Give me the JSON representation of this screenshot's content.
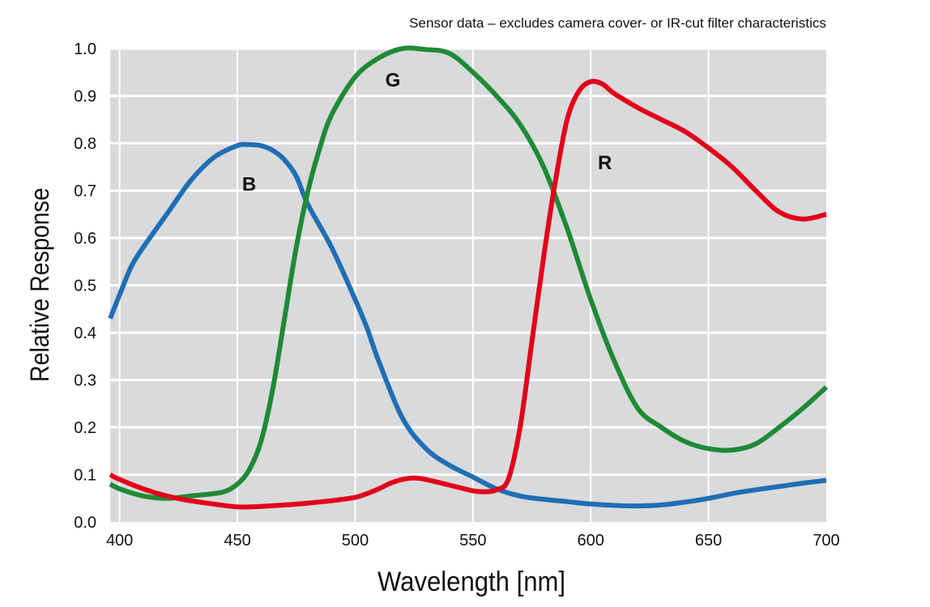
{
  "chart_data": {
    "type": "line",
    "subtitle": "Sensor data – excludes camera cover- or IR-cut filter characteristics",
    "xlabel": "Wavelength [nm]",
    "ylabel": "Relative Response",
    "xlim": [
      396,
      700
    ],
    "ylim": [
      0,
      1.0
    ],
    "xticks": [
      "400",
      "450",
      "500",
      "550",
      "600",
      "650",
      "700"
    ],
    "yticks": [
      "0.0",
      "0.1",
      "0.2",
      "0.3",
      "0.4",
      "0.5",
      "0.6",
      "0.7",
      "0.8",
      "0.9",
      "1.0"
    ],
    "grid": true,
    "background": "#d9dadb",
    "series": [
      {
        "name": "B",
        "color": "#1f6fb5",
        "points": [
          [
            396,
            0.43
          ],
          [
            400,
            0.48
          ],
          [
            405,
            0.54
          ],
          [
            410,
            0.58
          ],
          [
            420,
            0.65
          ],
          [
            430,
            0.72
          ],
          [
            440,
            0.77
          ],
          [
            450,
            0.795
          ],
          [
            455,
            0.797
          ],
          [
            460,
            0.795
          ],
          [
            465,
            0.785
          ],
          [
            470,
            0.765
          ],
          [
            475,
            0.73
          ],
          [
            480,
            0.67
          ],
          [
            490,
            0.58
          ],
          [
            500,
            0.47
          ],
          [
            505,
            0.41
          ],
          [
            510,
            0.34
          ],
          [
            520,
            0.22
          ],
          [
            530,
            0.155
          ],
          [
            540,
            0.12
          ],
          [
            550,
            0.095
          ],
          [
            560,
            0.07
          ],
          [
            570,
            0.055
          ],
          [
            580,
            0.048
          ],
          [
            590,
            0.043
          ],
          [
            600,
            0.038
          ],
          [
            610,
            0.035
          ],
          [
            620,
            0.034
          ],
          [
            630,
            0.036
          ],
          [
            640,
            0.042
          ],
          [
            650,
            0.05
          ],
          [
            660,
            0.06
          ],
          [
            670,
            0.068
          ],
          [
            680,
            0.075
          ],
          [
            690,
            0.082
          ],
          [
            700,
            0.088
          ]
        ]
      },
      {
        "name": "G",
        "color": "#1f8a36",
        "points": [
          [
            396,
            0.08
          ],
          [
            400,
            0.07
          ],
          [
            410,
            0.055
          ],
          [
            420,
            0.05
          ],
          [
            430,
            0.055
          ],
          [
            440,
            0.06
          ],
          [
            445,
            0.065
          ],
          [
            450,
            0.08
          ],
          [
            455,
            0.11
          ],
          [
            460,
            0.17
          ],
          [
            465,
            0.28
          ],
          [
            470,
            0.43
          ],
          [
            475,
            0.58
          ],
          [
            480,
            0.7
          ],
          [
            485,
            0.79
          ],
          [
            490,
            0.86
          ],
          [
            500,
            0.94
          ],
          [
            510,
            0.98
          ],
          [
            520,
            1.0
          ],
          [
            530,
            0.998
          ],
          [
            540,
            0.99
          ],
          [
            550,
            0.95
          ],
          [
            560,
            0.9
          ],
          [
            570,
            0.84
          ],
          [
            580,
            0.75
          ],
          [
            590,
            0.62
          ],
          [
            600,
            0.47
          ],
          [
            610,
            0.34
          ],
          [
            620,
            0.24
          ],
          [
            630,
            0.2
          ],
          [
            640,
            0.17
          ],
          [
            650,
            0.155
          ],
          [
            660,
            0.152
          ],
          [
            670,
            0.165
          ],
          [
            680,
            0.2
          ],
          [
            690,
            0.24
          ],
          [
            700,
            0.285
          ]
        ]
      },
      {
        "name": "R",
        "color": "#e2001a",
        "points": [
          [
            396,
            0.1
          ],
          [
            400,
            0.09
          ],
          [
            410,
            0.07
          ],
          [
            420,
            0.055
          ],
          [
            430,
            0.045
          ],
          [
            440,
            0.038
          ],
          [
            450,
            0.032
          ],
          [
            460,
            0.033
          ],
          [
            470,
            0.036
          ],
          [
            480,
            0.04
          ],
          [
            490,
            0.045
          ],
          [
            500,
            0.052
          ],
          [
            505,
            0.06
          ],
          [
            510,
            0.07
          ],
          [
            515,
            0.082
          ],
          [
            520,
            0.09
          ],
          [
            525,
            0.093
          ],
          [
            530,
            0.09
          ],
          [
            540,
            0.078
          ],
          [
            550,
            0.066
          ],
          [
            555,
            0.064
          ],
          [
            560,
            0.068
          ],
          [
            565,
            0.09
          ],
          [
            570,
            0.2
          ],
          [
            575,
            0.38
          ],
          [
            580,
            0.56
          ],
          [
            585,
            0.72
          ],
          [
            590,
            0.85
          ],
          [
            595,
            0.91
          ],
          [
            600,
            0.93
          ],
          [
            605,
            0.925
          ],
          [
            610,
            0.905
          ],
          [
            620,
            0.875
          ],
          [
            630,
            0.85
          ],
          [
            640,
            0.825
          ],
          [
            650,
            0.79
          ],
          [
            660,
            0.75
          ],
          [
            670,
            0.7
          ],
          [
            680,
            0.655
          ],
          [
            690,
            0.64
          ],
          [
            700,
            0.65
          ]
        ]
      }
    ],
    "annotations": [
      {
        "text": "B",
        "x": 455,
        "y": 0.7
      },
      {
        "text": "G",
        "x": 516,
        "y": 0.92
      },
      {
        "text": "R",
        "x": 606,
        "y": 0.745
      }
    ]
  }
}
